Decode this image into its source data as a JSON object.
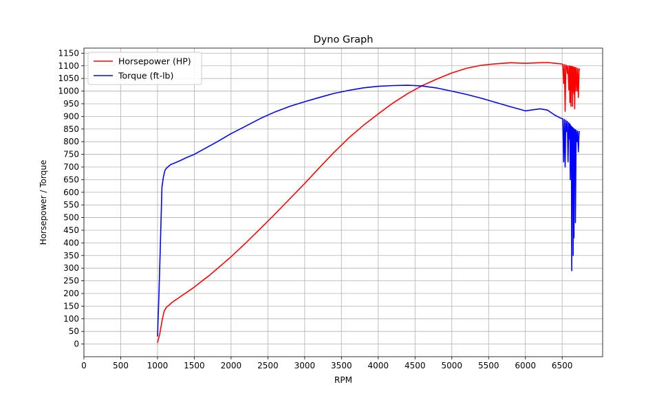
{
  "chart_data": {
    "type": "line",
    "title": "Dyno Graph",
    "xlabel": "RPM",
    "ylabel": "Horsepower / Torque",
    "xlim": [
      0,
      7050
    ],
    "ylim": [
      -50,
      1170
    ],
    "x_ticks": [
      0,
      500,
      1000,
      1500,
      2000,
      2500,
      3000,
      3500,
      4000,
      4500,
      5000,
      5500,
      6000,
      6500
    ],
    "x_tick_labels": [
      "0",
      "500",
      "1000",
      "1500",
      "2000",
      "2500",
      "3000",
      "3500",
      "4000",
      "4500",
      "5000",
      "5500",
      "6000",
      "6500"
    ],
    "y_ticks": [
      0,
      50,
      100,
      150,
      200,
      250,
      300,
      350,
      400,
      450,
      500,
      550,
      600,
      650,
      700,
      750,
      800,
      850,
      900,
      950,
      1000,
      1050,
      1100,
      1150
    ],
    "y_tick_labels": [
      "0",
      "50",
      "100",
      "150",
      "200",
      "250",
      "300",
      "350",
      "400",
      "450",
      "500",
      "550",
      "600",
      "650",
      "700",
      "750",
      "800",
      "850",
      "900",
      "950",
      "1000",
      "1050",
      "1100",
      "1150"
    ],
    "grid": true,
    "legend_position": "top-left",
    "series": [
      {
        "name": "Horsepower (HP)",
        "color": "#ff0000",
        "x": [
          1000,
          1030,
          1060,
          1090,
          1120,
          1160,
          1200,
          1300,
          1400,
          1500,
          1600,
          1700,
          1800,
          1900,
          2000,
          2200,
          2400,
          2600,
          2800,
          3000,
          3200,
          3400,
          3600,
          3800,
          4000,
          4200,
          4400,
          4600,
          4800,
          5000,
          5200,
          5400,
          5600,
          5800,
          6000,
          6200,
          6300,
          6400,
          6480,
          6510,
          6520,
          6530,
          6540,
          6550,
          6560,
          6570,
          6580,
          6590,
          6600,
          6605,
          6610,
          6615,
          6620,
          6625,
          6630,
          6635,
          6640,
          6645,
          6650,
          6655,
          6660,
          6665,
          6670,
          6675,
          6680,
          6690,
          6700,
          6710,
          6720,
          6730,
          6740
        ],
        "y": [
          5,
          40,
          90,
          130,
          145,
          155,
          165,
          185,
          205,
          225,
          248,
          270,
          295,
          320,
          345,
          400,
          457,
          515,
          575,
          635,
          697,
          758,
          815,
          865,
          910,
          953,
          990,
          1022,
          1048,
          1072,
          1090,
          1102,
          1108,
          1112,
          1110,
          1112,
          1113,
          1110,
          1108,
          1105,
          1030,
          1105,
          920,
          1103,
          1100,
          1070,
          1100,
          1005,
          1100,
          955,
          1098,
          1000,
          940,
          1098,
          1000,
          1097,
          940,
          1096,
          1000,
          1095,
          990,
          1094,
          930,
          1093,
          1000,
          1092,
          1000,
          1090,
          975,
          1088,
          1085
        ]
      },
      {
        "name": "Torque (ft-lb)",
        "color": "#0000ff",
        "x": [
          1000,
          1020,
          1040,
          1060,
          1080,
          1100,
          1120,
          1140,
          1160,
          1180,
          1200,
          1250,
          1300,
          1400,
          1500,
          1600,
          1700,
          1800,
          1900,
          2000,
          2200,
          2400,
          2600,
          2800,
          3000,
          3200,
          3400,
          3600,
          3800,
          4000,
          4200,
          4400,
          4500,
          4600,
          4800,
          5000,
          5200,
          5400,
          5600,
          5800,
          6000,
          6200,
          6300,
          6400,
          6480,
          6510,
          6520,
          6530,
          6540,
          6550,
          6560,
          6570,
          6580,
          6590,
          6600,
          6605,
          6610,
          6615,
          6620,
          6625,
          6630,
          6635,
          6640,
          6645,
          6650,
          6655,
          6660,
          6665,
          6670,
          6675,
          6680,
          6690,
          6700,
          6710,
          6720,
          6730,
          6740
        ],
        "y": [
          30,
          200,
          400,
          620,
          660,
          685,
          695,
          700,
          705,
          710,
          712,
          718,
          724,
          738,
          750,
          766,
          782,
          798,
          815,
          832,
          862,
          892,
          918,
          940,
          958,
          975,
          991,
          1003,
          1013,
          1019,
          1022,
          1023,
          1022,
          1020,
          1012,
          1000,
          987,
          972,
          955,
          938,
          922,
          930,
          925,
          905,
          893,
          890,
          720,
          888,
          700,
          885,
          840,
          880,
          720,
          875,
          810,
          870,
          650,
          865,
          820,
          860,
          290,
          858,
          800,
          855,
          350,
          852,
          420,
          850,
          780,
          848,
          480,
          845,
          800,
          842,
          760,
          840,
          840
        ]
      }
    ]
  }
}
